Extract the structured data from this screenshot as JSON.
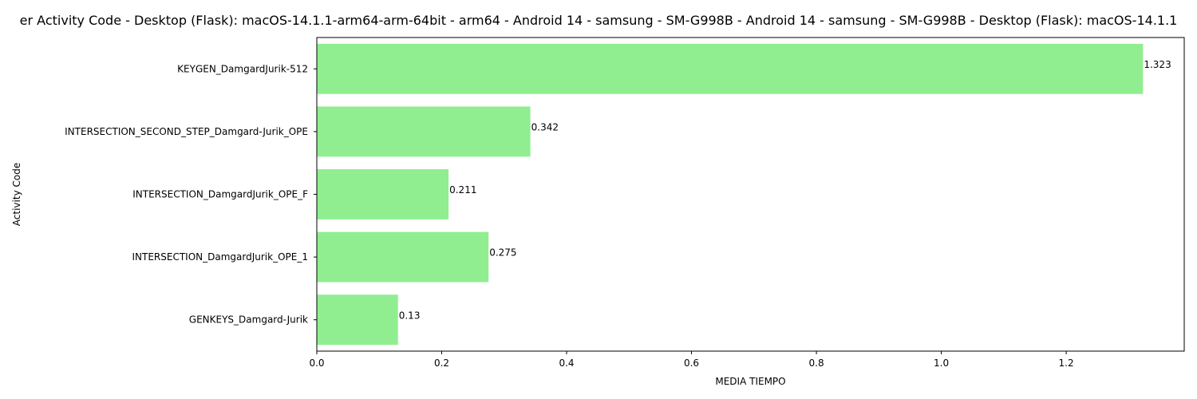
{
  "chart_data": {
    "type": "bar",
    "orientation": "horizontal",
    "title": "er Activity Code - Desktop (Flask): macOS-14.1.1-arm64-arm-64bit - arm64 - Android 14 - samsung - SM-G998B - Android 14 - samsung - SM-G998B - Desktop (Flask): macOS-14.1.1",
    "xlabel": "MEDIA TIEMPO",
    "ylabel": "Activity Code",
    "categories": [
      "GENKEYS_Damgard-Jurik",
      "INTERSECTION_DamgardJurik_OPE_1",
      "INTERSECTION_DamgardJurik_OPE_F",
      "INTERSECTION_SECOND_STEP_Damgard-Jurik_OPE",
      "KEYGEN_DamgardJurik-512"
    ],
    "values": [
      0.13,
      0.275,
      0.211,
      0.342,
      1.323
    ],
    "value_labels": [
      "0.13",
      "0.275",
      "0.211",
      "0.342",
      "1.323"
    ],
    "xlim": [
      0,
      1.389
    ],
    "xticks": [
      0.0,
      0.2,
      0.4,
      0.6,
      0.8,
      1.0,
      1.2
    ],
    "xtick_labels": [
      "0.0",
      "0.2",
      "0.4",
      "0.6",
      "0.8",
      "1.0",
      "1.2"
    ],
    "bar_color": "#90ee90",
    "grid": false,
    "legend": "none"
  }
}
